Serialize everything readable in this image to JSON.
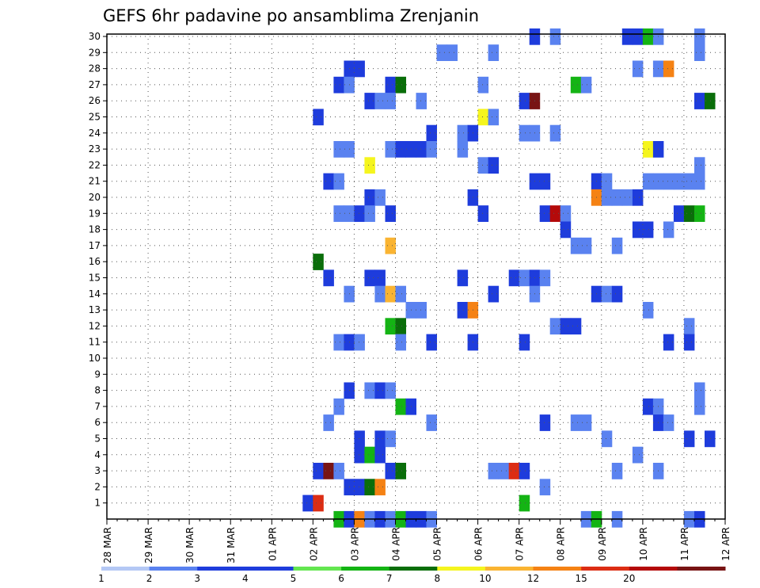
{
  "chart_data": {
    "type": "heatmap",
    "title": "GEFS 6hr padavine po ansamblima Zrenjanin",
    "xlabel": "",
    "ylabel": "",
    "x_tick_labels": [
      "28 MAR",
      "29 MAR",
      "30 MAR",
      "31 MAR",
      "01 APR",
      "02 APR",
      "03 APR",
      "04 APR",
      "05 APR",
      "06 APR",
      "07 APR",
      "08 APR",
      "09 APR",
      "10 APR",
      "11 APR",
      "12 APR"
    ],
    "x_range_days": [
      0,
      15
    ],
    "y_tick_labels": [
      "1",
      "2",
      "3",
      "4",
      "5",
      "6",
      "7",
      "8",
      "9",
      "10",
      "11",
      "12",
      "13",
      "14",
      "15",
      "16",
      "17",
      "18",
      "19",
      "20",
      "21",
      "22",
      "23",
      "24",
      "25",
      "26",
      "27",
      "28",
      "29",
      "30"
    ],
    "y_range": [
      0,
      30
    ],
    "grid": true,
    "legend": {
      "position": "bottom",
      "labels": [
        "1",
        "2",
        "3",
        "4",
        "5",
        "6",
        "7",
        "8",
        "10",
        "12",
        "15",
        "20"
      ],
      "colors": [
        "#b4c8f5",
        "#5a82f0",
        "#1e3cdc",
        "#1e3cdc",
        "#64e650",
        "#14b414",
        "#0a6e0a",
        "#f5f51e",
        "#fab432",
        "#f58214",
        "#dc2d14",
        "#b40a0a",
        "#781414"
      ]
    },
    "cells": [
      [
        10.25,
        30,
        2
      ],
      [
        10.75,
        30,
        1
      ],
      [
        12.5,
        30,
        2
      ],
      [
        12.75,
        30,
        2
      ],
      [
        13.0,
        30,
        5
      ],
      [
        13.25,
        30,
        1
      ],
      [
        14.25,
        30,
        1
      ],
      [
        8.0,
        29,
        1
      ],
      [
        8.25,
        29,
        1
      ],
      [
        9.25,
        29,
        1
      ],
      [
        14.25,
        29,
        1
      ],
      [
        5.75,
        28,
        3
      ],
      [
        6.0,
        28,
        2
      ],
      [
        12.75,
        28,
        1
      ],
      [
        13.25,
        28,
        1
      ],
      [
        13.5,
        28,
        9
      ],
      [
        5.5,
        27,
        2
      ],
      [
        5.75,
        27,
        1
      ],
      [
        6.75,
        27,
        3
      ],
      [
        7.0,
        27,
        6
      ],
      [
        9.0,
        27,
        1
      ],
      [
        11.25,
        27,
        5
      ],
      [
        11.5,
        27,
        1
      ],
      [
        6.25,
        26,
        3
      ],
      [
        6.5,
        26,
        1
      ],
      [
        6.75,
        26,
        1
      ],
      [
        7.5,
        26,
        1
      ],
      [
        10.0,
        26,
        2
      ],
      [
        10.25,
        26,
        12
      ],
      [
        14.25,
        26,
        3
      ],
      [
        14.5,
        26,
        6
      ],
      [
        5.0,
        25,
        3
      ],
      [
        9.0,
        25,
        7
      ],
      [
        9.25,
        25,
        1
      ],
      [
        7.75,
        24,
        2
      ],
      [
        8.5,
        24,
        1
      ],
      [
        8.75,
        24,
        3
      ],
      [
        10.0,
        24,
        1
      ],
      [
        10.25,
        24,
        1
      ],
      [
        10.75,
        24,
        1
      ],
      [
        5.5,
        23,
        1
      ],
      [
        5.75,
        23,
        1
      ],
      [
        6.75,
        23,
        1
      ],
      [
        7.0,
        23,
        2
      ],
      [
        7.25,
        23,
        3
      ],
      [
        7.5,
        23,
        2
      ],
      [
        7.75,
        23,
        1
      ],
      [
        8.5,
        23,
        1
      ],
      [
        13.0,
        23,
        7
      ],
      [
        13.25,
        23,
        2
      ],
      [
        6.25,
        22,
        7
      ],
      [
        9.0,
        22,
        1
      ],
      [
        9.25,
        22,
        2
      ],
      [
        14.25,
        22,
        1
      ],
      [
        5.25,
        21,
        3
      ],
      [
        5.5,
        21,
        1
      ],
      [
        10.25,
        21,
        3
      ],
      [
        10.5,
        21,
        3
      ],
      [
        11.75,
        21,
        3
      ],
      [
        12.0,
        21,
        1
      ],
      [
        13.0,
        21,
        1
      ],
      [
        13.25,
        21,
        1
      ],
      [
        13.5,
        21,
        1
      ],
      [
        13.75,
        21,
        1
      ],
      [
        14.0,
        21,
        1
      ],
      [
        14.25,
        21,
        1
      ],
      [
        6.25,
        20,
        2
      ],
      [
        6.5,
        20,
        1
      ],
      [
        8.75,
        20,
        2
      ],
      [
        11.75,
        20,
        9
      ],
      [
        12.0,
        20,
        1
      ],
      [
        12.25,
        20,
        1
      ],
      [
        12.5,
        20,
        1
      ],
      [
        12.75,
        20,
        2
      ],
      [
        5.5,
        19,
        1
      ],
      [
        5.75,
        19,
        1
      ],
      [
        6.0,
        19,
        2
      ],
      [
        6.25,
        19,
        1
      ],
      [
        6.75,
        19,
        2
      ],
      [
        9.0,
        19,
        2
      ],
      [
        10.5,
        19,
        2
      ],
      [
        10.75,
        19,
        11
      ],
      [
        11.0,
        19,
        1
      ],
      [
        13.75,
        19,
        2
      ],
      [
        14.0,
        19,
        6
      ],
      [
        14.25,
        19,
        5
      ],
      [
        11.0,
        18,
        2
      ],
      [
        12.75,
        18,
        2
      ],
      [
        13.0,
        18,
        2
      ],
      [
        13.5,
        18,
        1
      ],
      [
        6.75,
        17,
        8
      ],
      [
        11.25,
        17,
        1
      ],
      [
        11.5,
        17,
        1
      ],
      [
        12.25,
        17,
        1
      ],
      [
        5.0,
        16,
        6
      ],
      [
        5.25,
        15,
        3
      ],
      [
        6.25,
        15,
        2
      ],
      [
        6.5,
        15,
        3
      ],
      [
        8.5,
        15,
        3
      ],
      [
        9.75,
        15,
        2
      ],
      [
        10.0,
        15,
        1
      ],
      [
        10.25,
        15,
        3
      ],
      [
        10.5,
        15,
        1
      ],
      [
        5.75,
        14,
        1
      ],
      [
        6.5,
        14,
        1
      ],
      [
        6.75,
        14,
        8
      ],
      [
        7.0,
        14,
        1
      ],
      [
        9.25,
        14,
        2
      ],
      [
        10.25,
        14,
        1
      ],
      [
        11.75,
        14,
        3
      ],
      [
        12.0,
        14,
        1
      ],
      [
        12.25,
        14,
        2
      ],
      [
        7.25,
        13,
        1
      ],
      [
        7.5,
        13,
        1
      ],
      [
        8.5,
        13,
        3
      ],
      [
        8.75,
        13,
        9
      ],
      [
        13.0,
        13,
        1
      ],
      [
        6.75,
        12,
        5
      ],
      [
        7.0,
        12,
        6
      ],
      [
        10.75,
        12,
        1
      ],
      [
        11.0,
        12,
        3
      ],
      [
        11.25,
        12,
        2
      ],
      [
        14.0,
        12,
        1
      ],
      [
        5.5,
        11,
        1
      ],
      [
        5.75,
        11,
        2
      ],
      [
        6.0,
        11,
        1
      ],
      [
        7.0,
        11,
        1
      ],
      [
        7.75,
        11,
        2
      ],
      [
        8.75,
        11,
        2
      ],
      [
        10.0,
        11,
        2
      ],
      [
        13.5,
        11,
        2
      ],
      [
        14.0,
        11,
        2
      ],
      [
        6.25,
        8,
        1
      ],
      [
        5.75,
        8,
        2
      ],
      [
        6.5,
        8,
        2
      ],
      [
        6.75,
        8,
        1
      ],
      [
        14.25,
        8,
        1
      ],
      [
        5.5,
        7,
        1
      ],
      [
        7.0,
        7,
        5
      ],
      [
        7.25,
        7,
        3
      ],
      [
        13.0,
        7,
        3
      ],
      [
        13.25,
        7,
        1
      ],
      [
        14.25,
        7,
        1
      ],
      [
        5.25,
        6,
        1
      ],
      [
        7.75,
        6,
        1
      ],
      [
        10.5,
        6,
        2
      ],
      [
        11.25,
        6,
        1
      ],
      [
        11.5,
        6,
        1
      ],
      [
        13.25,
        6,
        2
      ],
      [
        13.5,
        6,
        1
      ],
      [
        6.0,
        5,
        2
      ],
      [
        6.5,
        5,
        3
      ],
      [
        6.75,
        5,
        1
      ],
      [
        12.0,
        5,
        1
      ],
      [
        14.0,
        5,
        3
      ],
      [
        14.5,
        5,
        3
      ],
      [
        6.0,
        4,
        3
      ],
      [
        6.25,
        4,
        5
      ],
      [
        6.5,
        4,
        3
      ],
      [
        12.75,
        4,
        1
      ],
      [
        5.0,
        3,
        2
      ],
      [
        5.25,
        3,
        12
      ],
      [
        5.5,
        3,
        1
      ],
      [
        6.75,
        3,
        2
      ],
      [
        7.0,
        3,
        6
      ],
      [
        9.25,
        3,
        1
      ],
      [
        9.5,
        3,
        1
      ],
      [
        9.75,
        3,
        10
      ],
      [
        10.0,
        3,
        2
      ],
      [
        12.25,
        3,
        1
      ],
      [
        13.25,
        3,
        1
      ],
      [
        5.75,
        2,
        3
      ],
      [
        6.0,
        2,
        3
      ],
      [
        6.25,
        2,
        6
      ],
      [
        6.5,
        2,
        9
      ],
      [
        10.5,
        2,
        1
      ],
      [
        4.75,
        1,
        2
      ],
      [
        5.0,
        1,
        10
      ],
      [
        10.0,
        1,
        5
      ],
      [
        5.5,
        0,
        5
      ],
      [
        5.75,
        0,
        3
      ],
      [
        6.0,
        0,
        9
      ],
      [
        6.25,
        0,
        1
      ],
      [
        6.5,
        0,
        3
      ],
      [
        6.75,
        0,
        1
      ],
      [
        7.0,
        0,
        5
      ],
      [
        7.25,
        0,
        3
      ],
      [
        7.5,
        0,
        2
      ],
      [
        7.75,
        0,
        1
      ],
      [
        11.5,
        0,
        1
      ],
      [
        11.75,
        0,
        5
      ],
      [
        12.25,
        0,
        1
      ],
      [
        14.0,
        0,
        1
      ],
      [
        14.25,
        0,
        2
      ]
    ]
  }
}
